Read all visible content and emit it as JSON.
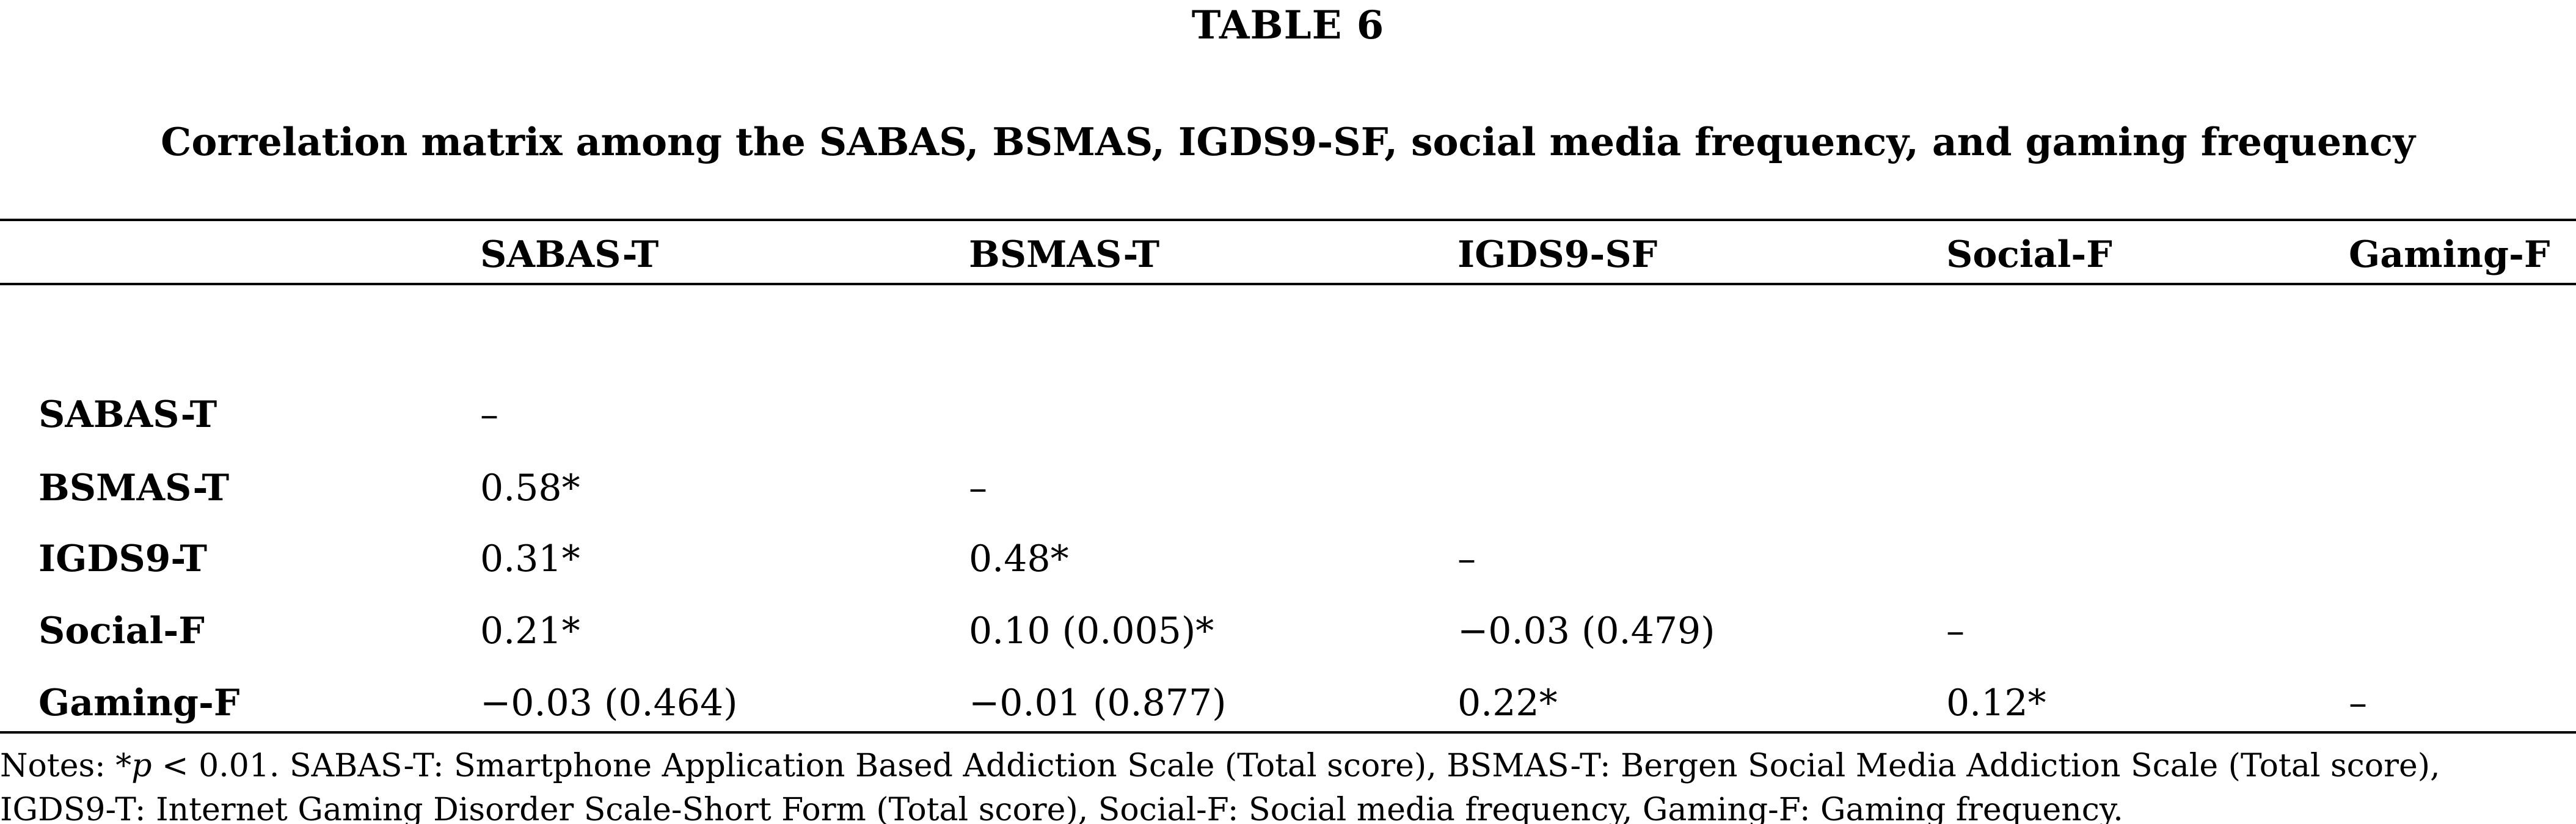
{
  "table": {
    "label": "TABLE 6",
    "caption": "Correlation matrix among the SABAS, BSMAS, IGDS9-SF, social media frequency, and gaming frequency",
    "columns": [
      "SABAS-T",
      "BSMAS-T",
      "IGDS9-SF",
      "Social-F",
      "Gaming-F"
    ],
    "rows": [
      {
        "label": "SABAS-T",
        "cells": [
          "–",
          "",
          "",
          "",
          ""
        ]
      },
      {
        "label": "BSMAS-T",
        "cells": [
          "0.58*",
          "–",
          "",
          "",
          ""
        ]
      },
      {
        "label": "IGDS9-T",
        "cells": [
          "0.31*",
          "0.48*",
          "–",
          "",
          ""
        ]
      },
      {
        "label": "Social-F",
        "cells": [
          "0.21*",
          "0.10 (0.005)*",
          "−0.03 (0.479)",
          "–",
          ""
        ]
      },
      {
        "label": "Gaming-F",
        "cells": [
          "−0.03 (0.464)",
          "−0.01 (0.877)",
          "0.22*",
          "0.12*",
          "–"
        ]
      }
    ],
    "notes": {
      "prefix": "Notes: *",
      "p_symbol": "p",
      "text": " < 0.01. SABAS-T: Smartphone Application Based Addiction Scale (Total score), BSMAS-T: Bergen Social Media Addiction Scale (Total score), IGDS9-T: Internet Gaming Disorder Scale-Short Form (Total score), Social-F: Social media frequency, Gaming-F: Gaming frequency."
    }
  }
}
